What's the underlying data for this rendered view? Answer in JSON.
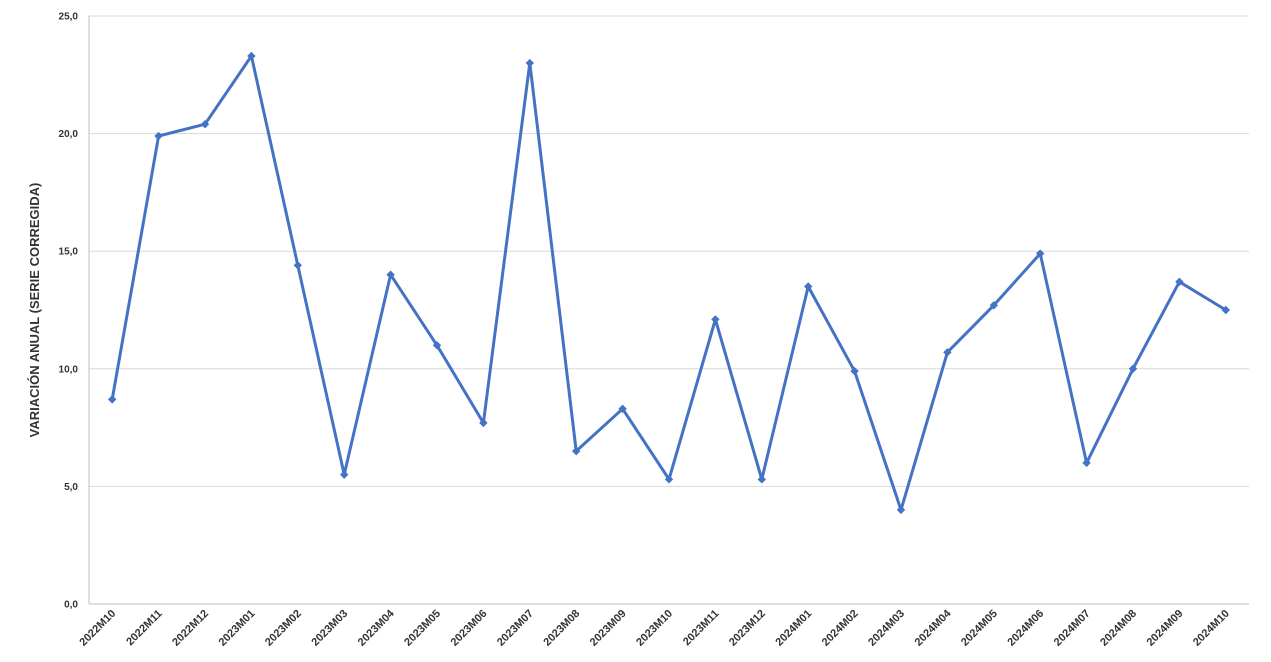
{
  "chart_data": {
    "type": "line",
    "ylabel": "VARIACIÓN ANUAL (SERIE CORREGIDA)",
    "xlabel": "",
    "ylim": [
      0,
      25
    ],
    "y_ticks": [
      "0,0",
      "5,0",
      "10,0",
      "15,0",
      "20,0",
      "25,0"
    ],
    "y_tick_values": [
      0,
      5,
      10,
      15,
      20,
      25
    ],
    "grid": true,
    "legend": "none",
    "categories": [
      "2022M10",
      "2022M11",
      "2022M12",
      "2023M01",
      "2023M02",
      "2023M03",
      "2023M04",
      "2023M05",
      "2023M06",
      "2023M07",
      "2023M08",
      "2023M09",
      "2023M10",
      "2023M11",
      "2023M12",
      "2024M01",
      "2024M02",
      "2024M03",
      "2024M04",
      "2024M05",
      "2024M06",
      "2024M07",
      "2024M08",
      "2024M09",
      "2024M10"
    ],
    "series": [
      {
        "values": [
          8.7,
          19.9,
          20.4,
          23.3,
          14.4,
          5.5,
          14.0,
          11.0,
          7.7,
          23.0,
          6.5,
          8.3,
          5.3,
          12.1,
          5.3,
          13.5,
          9.9,
          4.0,
          10.7,
          12.7,
          14.9,
          6.0,
          10.0,
          13.7,
          12.5
        ],
        "color": "#4472C4"
      }
    ]
  }
}
